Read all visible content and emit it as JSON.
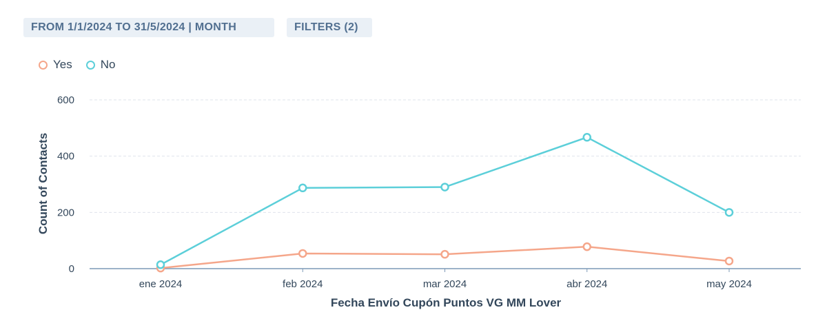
{
  "filters": {
    "date_range_label": "FROM 1/1/2024 TO 31/5/2024 | MONTH",
    "filters_label": "FILTERS (2)"
  },
  "chart_data": {
    "type": "line",
    "categories": [
      "ene 2024",
      "feb 2024",
      "mar 2024",
      "abr 2024",
      "may 2024"
    ],
    "series": [
      {
        "name": "Yes",
        "color": "#f5a68a",
        "values": [
          2,
          54,
          51,
          78,
          27
        ]
      },
      {
        "name": "No",
        "color": "#5ccfd9",
        "values": [
          14,
          287,
          290,
          467,
          200
        ]
      }
    ],
    "xlabel": "Fecha Envío Cupón Puntos VG MM Lover",
    "ylabel": "Count of Contacts",
    "ylim": [
      0,
      600
    ],
    "yticks": [
      0,
      200,
      400,
      600
    ],
    "grid": true,
    "legend_position": "top-left"
  }
}
